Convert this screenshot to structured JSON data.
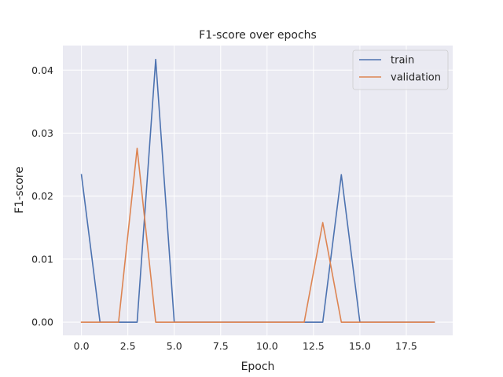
{
  "chart_data": {
    "type": "line",
    "title": "F1-score over epochs",
    "xlabel": "Epoch",
    "ylabel": "F1-score",
    "xlim": [
      -1.0,
      20.0
    ],
    "ylim": [
      -0.0021,
      0.0439
    ],
    "xticks": [
      0.0,
      2.5,
      5.0,
      7.5,
      10.0,
      12.5,
      15.0,
      17.5
    ],
    "xtick_labels": [
      "0.0",
      "2.5",
      "5.0",
      "7.5",
      "10.0",
      "12.5",
      "15.0",
      "17.5"
    ],
    "yticks": [
      0.0,
      0.01,
      0.02,
      0.03,
      0.04
    ],
    "ytick_labels": [
      "0.00",
      "0.01",
      "0.02",
      "0.03",
      "0.04"
    ],
    "grid": true,
    "legend_position": "top-right",
    "x": [
      0,
      1,
      2,
      3,
      4,
      5,
      6,
      7,
      8,
      9,
      10,
      11,
      12,
      13,
      14,
      15,
      16,
      17,
      18,
      19
    ],
    "series": [
      {
        "name": "train",
        "color": "#4c72b0",
        "values": [
          0.0234,
          0,
          0,
          0,
          0.0417,
          0,
          0,
          0,
          0,
          0,
          0,
          0,
          0,
          0,
          0.0234,
          0,
          0,
          0,
          0,
          0
        ]
      },
      {
        "name": "validation",
        "color": "#dd8452",
        "values": [
          0,
          0,
          0,
          0.0276,
          0,
          0,
          0,
          0,
          0,
          0,
          0,
          0,
          0,
          0.0158,
          0,
          0,
          0,
          0,
          0,
          0
        ]
      }
    ]
  },
  "colors": {
    "plot_background": "#eaeaf2",
    "grid": "#ffffff",
    "axis_text": "#262626"
  }
}
